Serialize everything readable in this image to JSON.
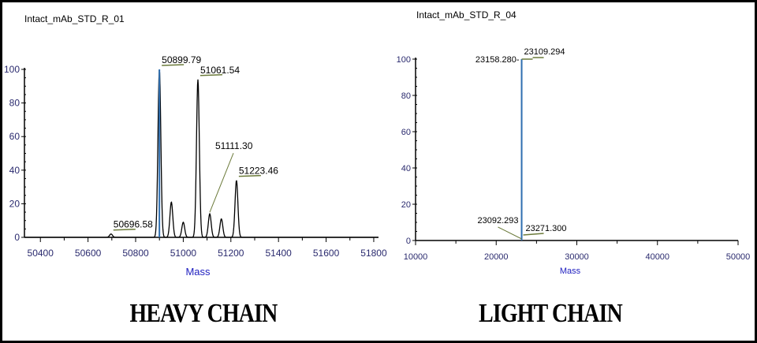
{
  "chart_data": [
    {
      "type": "line",
      "title": "Intact_mAb_STD_R_01",
      "xlabel": "Mass",
      "ylabel": "",
      "xlim": [
        50333,
        51820
      ],
      "ylim": [
        0,
        100
      ],
      "xticks": [
        50400,
        50600,
        50800,
        51000,
        51200,
        51400,
        51600,
        51800
      ],
      "yticks": [
        0,
        20,
        40,
        60,
        80,
        100
      ],
      "grid": false,
      "peaks": [
        {
          "x": 50696.58,
          "y": 2,
          "label": "50696.58"
        },
        {
          "x": 50899.79,
          "y": 100,
          "label": "50899.79",
          "highlight": true
        },
        {
          "x": 50950,
          "y": 21,
          "label": ""
        },
        {
          "x": 51000,
          "y": 9,
          "label": ""
        },
        {
          "x": 51061.54,
          "y": 94,
          "label": "51061.54"
        },
        {
          "x": 51111.3,
          "y": 14,
          "label": "51111.30"
        },
        {
          "x": 51160,
          "y": 11,
          "label": ""
        },
        {
          "x": 51223.46,
          "y": 34,
          "label": "51223.46"
        }
      ],
      "caption": "HEAVY CHAIN"
    },
    {
      "type": "line",
      "title": "Intact_mAb_STD_R_04",
      "xlabel": "Mass",
      "ylabel": "",
      "xlim": [
        10000,
        50000
      ],
      "ylim": [
        0,
        100
      ],
      "xticks": [
        10000,
        20000,
        30000,
        40000,
        50000
      ],
      "yticks": [
        0,
        20,
        40,
        60,
        80,
        100
      ],
      "grid": false,
      "peaks": [
        {
          "x": 23158.28,
          "y": 100,
          "label": "23158.280",
          "highlight": true
        },
        {
          "x": 23109.294,
          "y": 100,
          "label": "23109.294"
        },
        {
          "x": 23092.293,
          "y": 1,
          "label": "23092.293"
        },
        {
          "x": 23271.3,
          "y": 1,
          "label": "23271.300"
        }
      ],
      "caption": "LIGHT CHAIN"
    }
  ],
  "colors": {
    "axis_text": "#2a2a6e",
    "mass_label": "#2020c0",
    "highlight": "#2f6fb0",
    "peak": "#000000",
    "label_line": "#6b7a3a"
  }
}
